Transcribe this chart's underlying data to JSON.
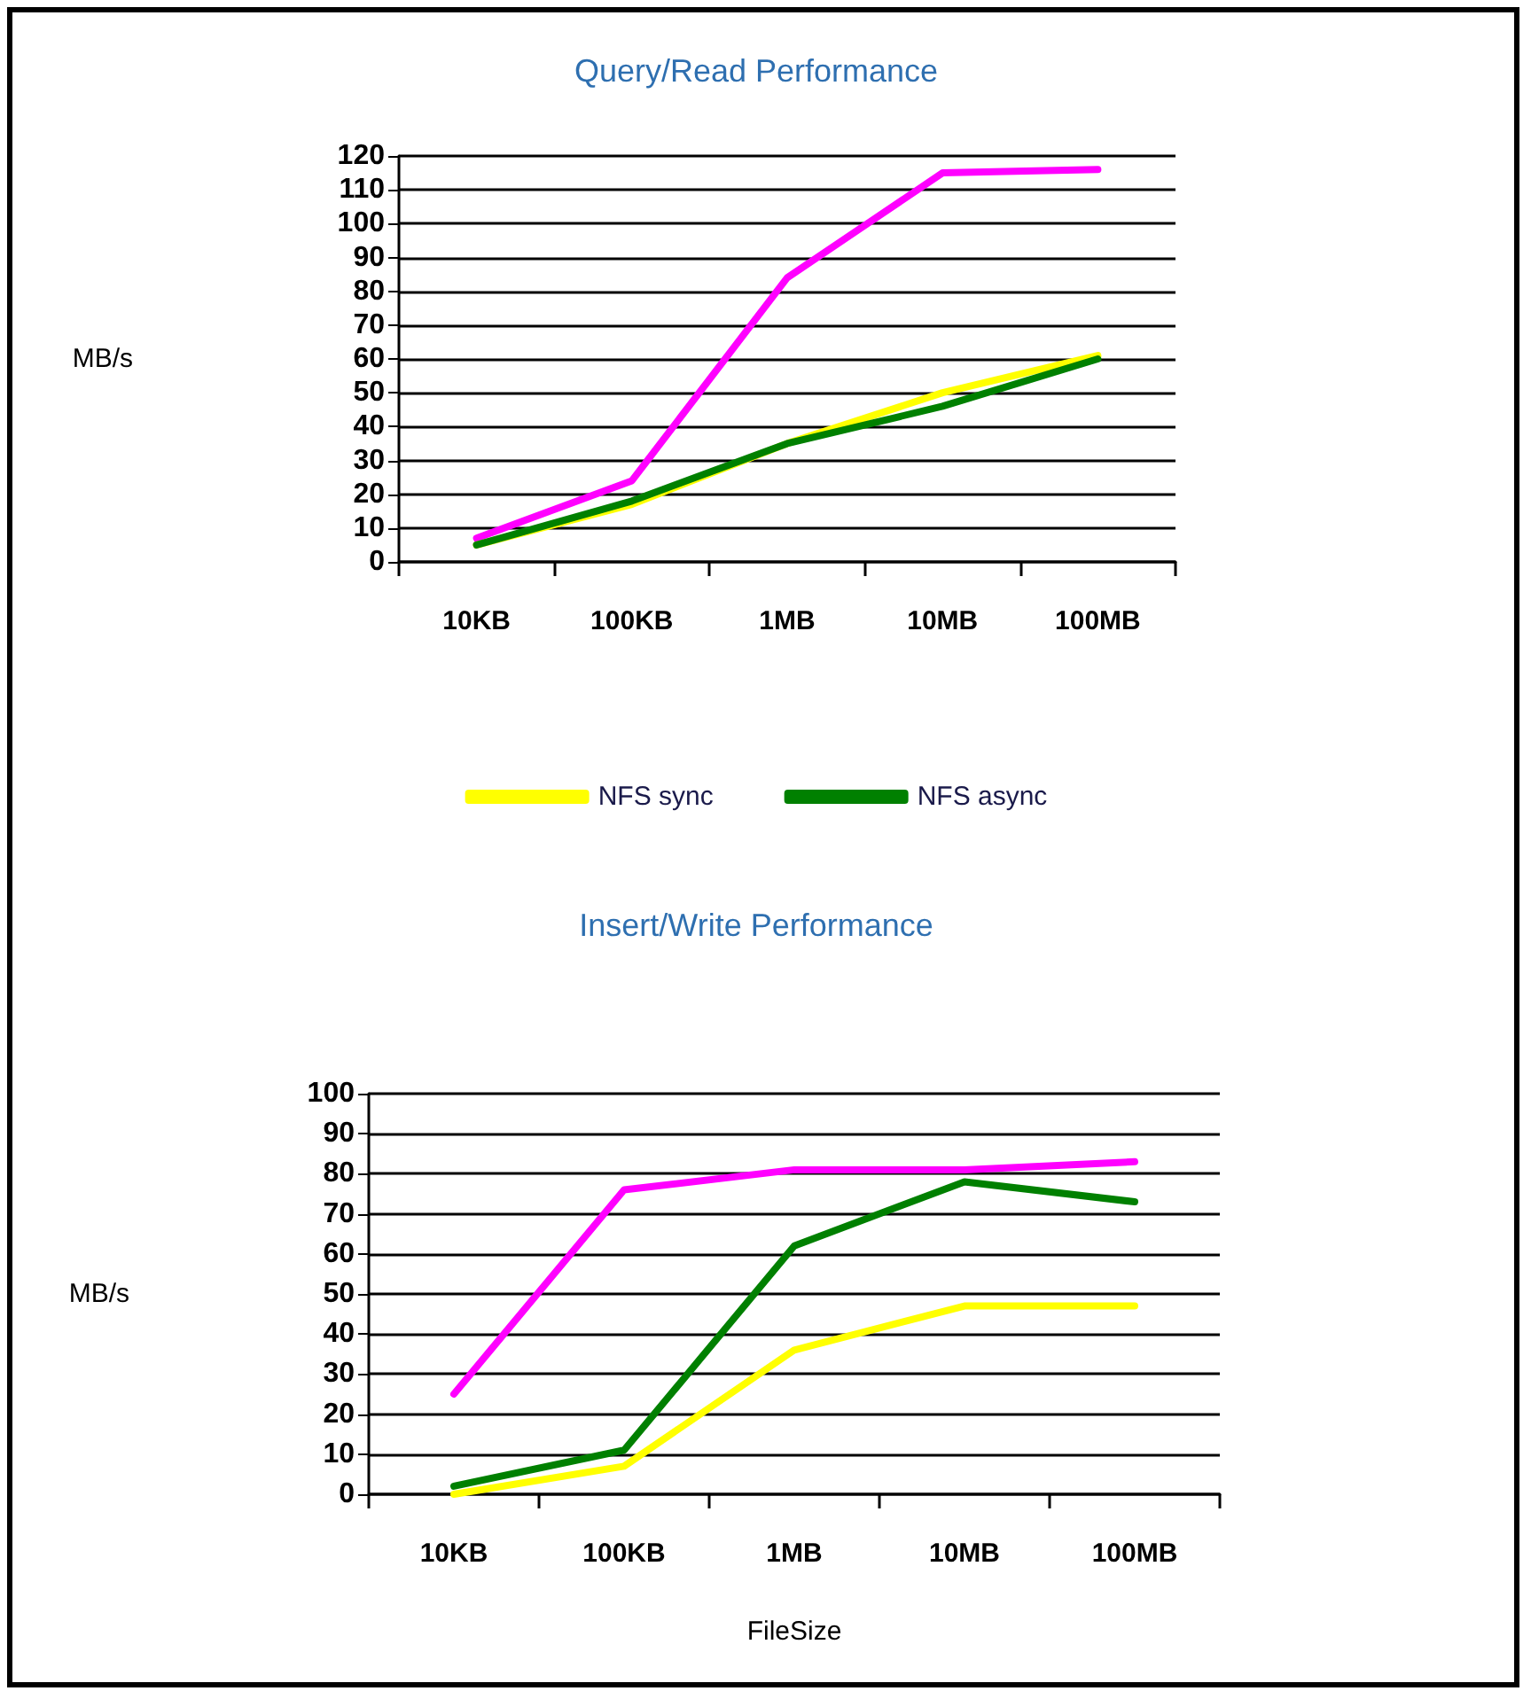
{
  "chart_data": [
    {
      "type": "line",
      "title": "Query/Read Performance",
      "ylabel": "MB/s",
      "categories": [
        "10KB",
        "100KB",
        "1MB",
        "10MB",
        "100MB"
      ],
      "series": [
        {
          "color": "#ff00ff",
          "values": [
            7,
            24,
            84,
            115,
            116
          ]
        },
        {
          "name": "NFS sync",
          "color": "#ffff00",
          "values": [
            5,
            17,
            35,
            50,
            61
          ]
        },
        {
          "name": "NFS async",
          "color": "#008000",
          "values": [
            5,
            18,
            35,
            46,
            60
          ]
        }
      ],
      "ylim": [
        0,
        120
      ],
      "yticks": [
        0,
        10,
        20,
        30,
        40,
        50,
        60,
        70,
        80,
        90,
        100,
        110,
        120
      ],
      "grid": "y",
      "legend": "bottom",
      "marker": "none",
      "line_style": "solid"
    },
    {
      "type": "line",
      "title": "Insert/Write Performance",
      "xlabel": "FileSize",
      "ylabel": "MB/s",
      "categories": [
        "10KB",
        "100KB",
        "1MB",
        "10MB",
        "100MB"
      ],
      "series": [
        {
          "color": "#ff00ff",
          "values": [
            25,
            76,
            81,
            81,
            83
          ]
        },
        {
          "color": "#ffff00",
          "values": [
            0,
            7,
            36,
            47,
            47
          ]
        },
        {
          "color": "#008000",
          "values": [
            2,
            11,
            62,
            78,
            73
          ]
        }
      ],
      "ylim": [
        0,
        100
      ],
      "yticks": [
        0,
        10,
        20,
        30,
        40,
        50,
        60,
        70,
        80,
        90,
        100
      ],
      "grid": "y",
      "legend": false,
      "marker": "none",
      "line_style": "solid"
    }
  ]
}
